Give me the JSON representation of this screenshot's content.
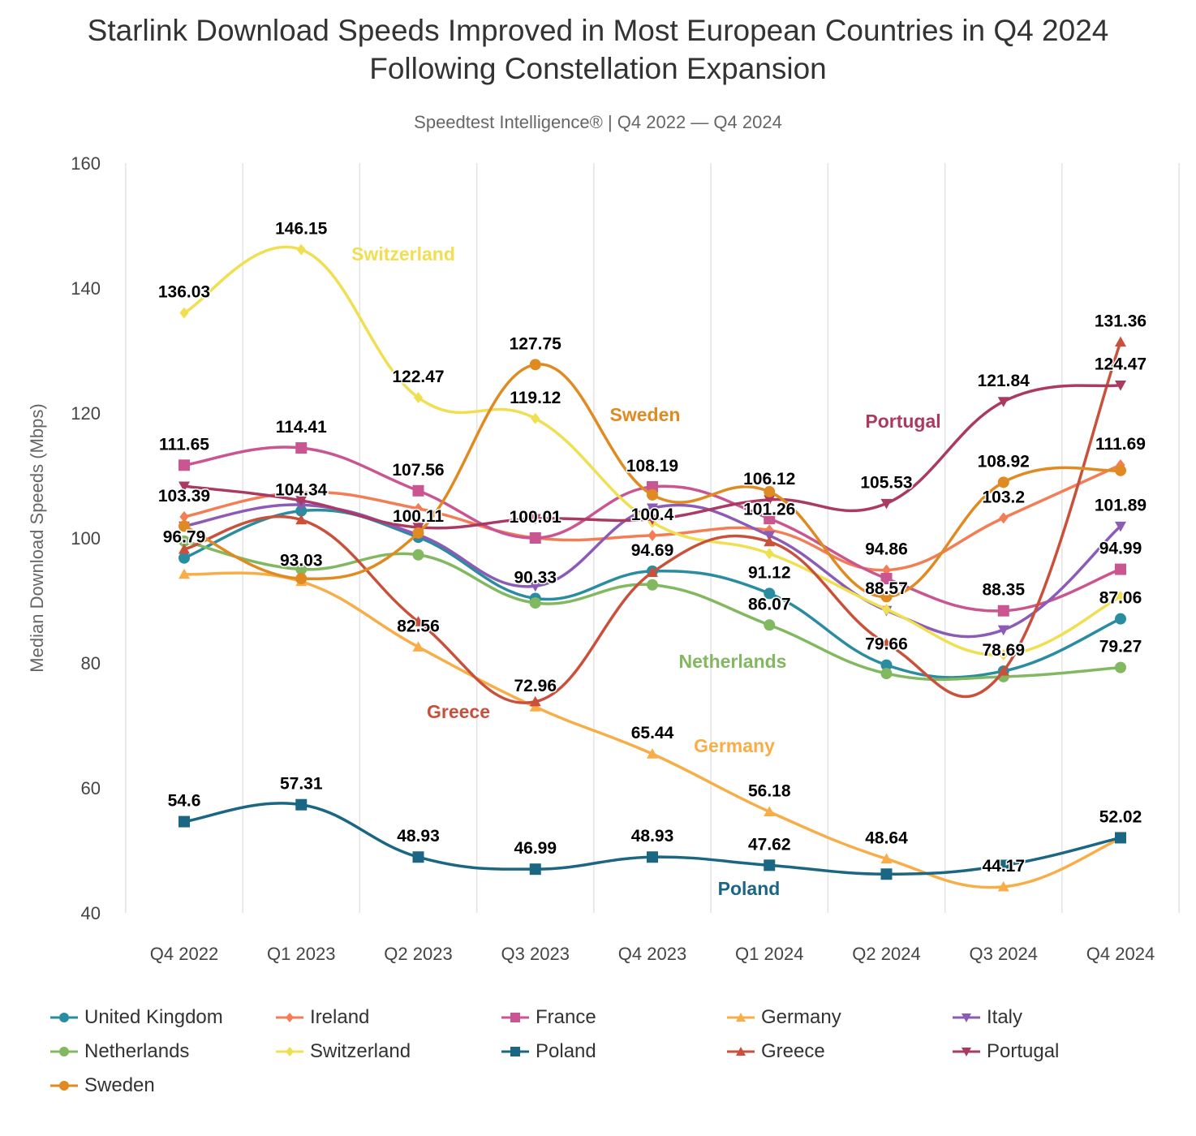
{
  "chart_data": {
    "type": "line",
    "title": "Starlink Download Speeds Improved in Most European Countries in Q4 2024 Following Constellation Expansion",
    "subtitle": "Speedtest Intelligence® | Q4 2022 — Q4 2024",
    "xlabel": "",
    "ylabel": "Median Download Speeds (Mbps)",
    "ylim": [
      40,
      160
    ],
    "yticks": [
      40,
      60,
      80,
      100,
      120,
      140,
      160
    ],
    "categories": [
      "Q4 2022",
      "Q1 2023",
      "Q2 2023",
      "Q3 2023",
      "Q4 2023",
      "Q1 2024",
      "Q2 2024",
      "Q3 2024",
      "Q4 2024"
    ],
    "grid": "vertical",
    "legend": "bottom",
    "series": [
      {
        "name": "United Kingdom",
        "color": "#2a8ca0",
        "marker": "circle",
        "values": [
          96.79,
          104.34,
          100.11,
          90.33,
          94.69,
          91.12,
          79.66,
          78.69,
          87.06
        ],
        "labels": [
          96.79,
          104.34,
          100.11,
          90.33,
          94.69,
          91.12,
          79.66,
          78.69,
          87.06
        ]
      },
      {
        "name": "Ireland",
        "color": "#f37d55",
        "marker": "diamond",
        "values": [
          103.39,
          107.3,
          104.7,
          100.01,
          100.4,
          101.26,
          94.86,
          103.2,
          111.69
        ],
        "labels": [
          103.39,
          null,
          null,
          100.01,
          100.4,
          101.26,
          94.86,
          103.2,
          111.69
        ]
      },
      {
        "name": "France",
        "color": "#c95591",
        "marker": "square",
        "values": [
          111.65,
          114.41,
          107.56,
          100.0,
          108.19,
          103.1,
          93.5,
          88.35,
          94.99
        ],
        "labels": [
          111.65,
          114.41,
          107.56,
          null,
          108.19,
          null,
          null,
          88.35,
          94.99
        ]
      },
      {
        "name": "Germany",
        "color": "#f8ad47",
        "marker": "triangle",
        "values": [
          94.2,
          93.03,
          82.56,
          72.96,
          65.44,
          56.18,
          48.64,
          44.17,
          51.9
        ],
        "labels": [
          null,
          93.03,
          82.56,
          72.96,
          65.44,
          56.18,
          48.64,
          44.17,
          null
        ]
      },
      {
        "name": "Italy",
        "color": "#8c5bb5",
        "marker": "triangle-down",
        "values": [
          101.9,
          105.3,
          100.5,
          92.3,
          104.8,
          100.4,
          88.4,
          85.3,
          101.89
        ],
        "labels": [
          null,
          null,
          null,
          null,
          null,
          null,
          null,
          null,
          101.89
        ]
      },
      {
        "name": "Netherlands",
        "color": "#82b860",
        "marker": "circle",
        "values": [
          99.5,
          95.0,
          97.3,
          89.6,
          92.5,
          86.07,
          78.3,
          77.8,
          79.27
        ],
        "labels": [
          null,
          null,
          null,
          null,
          null,
          86.07,
          null,
          null,
          79.27
        ],
        "inline_label": "Netherlands"
      },
      {
        "name": "Switzerland",
        "color": "#f0df50",
        "marker": "diamond",
        "values": [
          136.03,
          146.15,
          122.47,
          119.12,
          102.5,
          97.5,
          88.57,
          81.3,
          90.6
        ],
        "labels": [
          136.03,
          146.15,
          122.47,
          119.12,
          null,
          null,
          88.57,
          null,
          null
        ],
        "inline_label": "Switzerland"
      },
      {
        "name": "Poland",
        "color": "#1a6683",
        "marker": "square",
        "values": [
          54.6,
          57.31,
          48.93,
          46.99,
          48.93,
          47.62,
          46.2,
          47.6,
          52.02
        ],
        "labels": [
          54.6,
          57.31,
          48.93,
          46.99,
          48.93,
          47.62,
          null,
          null,
          52.02
        ],
        "inline_label": "Poland"
      },
      {
        "name": "Greece",
        "color": "#c9503a",
        "marker": "triangle",
        "values": [
          98.2,
          102.9,
          86.6,
          73.8,
          94.5,
          99.4,
          83.1,
          78.7,
          131.36
        ],
        "labels": [
          null,
          null,
          null,
          null,
          null,
          null,
          null,
          null,
          131.36
        ],
        "inline_label": "Greece"
      },
      {
        "name": "Portugal",
        "color": "#ab3a62",
        "marker": "triangle-down",
        "values": [
          108.3,
          106.0,
          101.7,
          103.1,
          103.0,
          106.12,
          105.53,
          121.84,
          124.47
        ],
        "labels": [
          null,
          null,
          null,
          null,
          null,
          106.12,
          105.53,
          121.84,
          124.47
        ],
        "inline_label": "Portugal"
      },
      {
        "name": "Sweden",
        "color": "#e08a22",
        "marker": "circle",
        "values": [
          101.9,
          93.5,
          100.8,
          127.75,
          106.9,
          107.4,
          90.6,
          108.92,
          110.8
        ],
        "labels": [
          null,
          null,
          null,
          127.75,
          null,
          null,
          null,
          108.92,
          null
        ],
        "inline_label": "Sweden"
      }
    ]
  }
}
